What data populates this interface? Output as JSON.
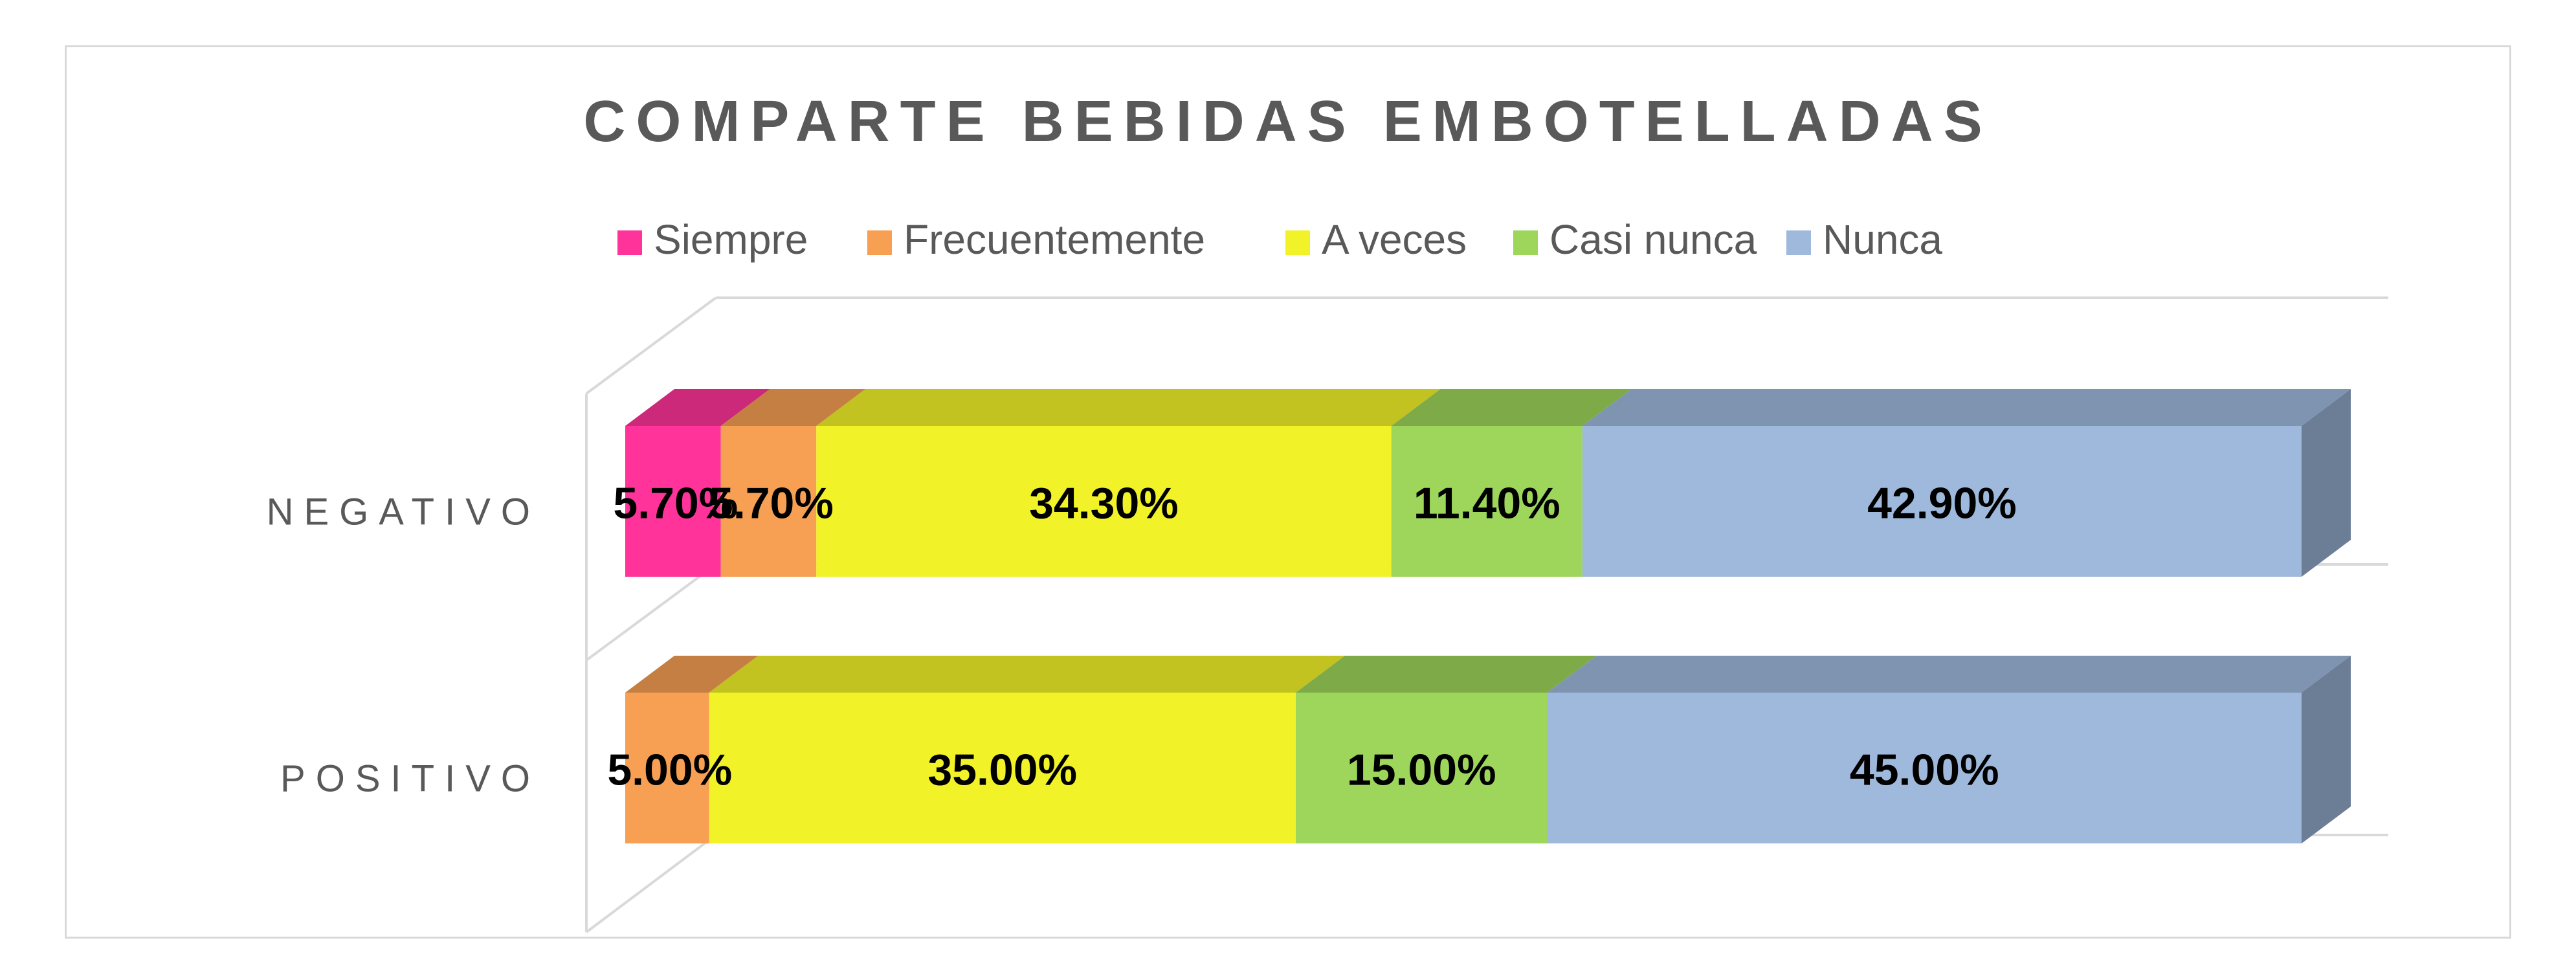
{
  "chart_data": {
    "type": "bar",
    "orientation": "horizontal",
    "stacked": true,
    "title": "COMPARTE BEBIDAS EMBOTELLADAS",
    "categories": [
      "NEGATIVO",
      "POSITIVO"
    ],
    "series": [
      {
        "name": "Siempre",
        "color": "#ff3399",
        "values": [
          5.7,
          0
        ],
        "labels": [
          "5.70%",
          ""
        ]
      },
      {
        "name": "Frecuentemente",
        "color": "#f79f53",
        "values": [
          5.7,
          5.0
        ],
        "labels": [
          "5.70%",
          "5.00%"
        ]
      },
      {
        "name": "A veces",
        "color": "#f2f229",
        "values": [
          34.3,
          35.0
        ],
        "labels": [
          "34.30%",
          "35.00%"
        ]
      },
      {
        "name": "Casi nunca",
        "color": "#9dd65a",
        "values": [
          11.4,
          15.0
        ],
        "labels": [
          "11.40%",
          "15.00%"
        ]
      },
      {
        "name": "Nunca",
        "color": "#9fb9dc",
        "values": [
          42.9,
          45.0
        ],
        "labels": [
          "42.90%",
          "45.00%"
        ]
      }
    ],
    "xlim": [
      0,
      100
    ],
    "legend": "top",
    "grid": true,
    "style": "3d"
  }
}
